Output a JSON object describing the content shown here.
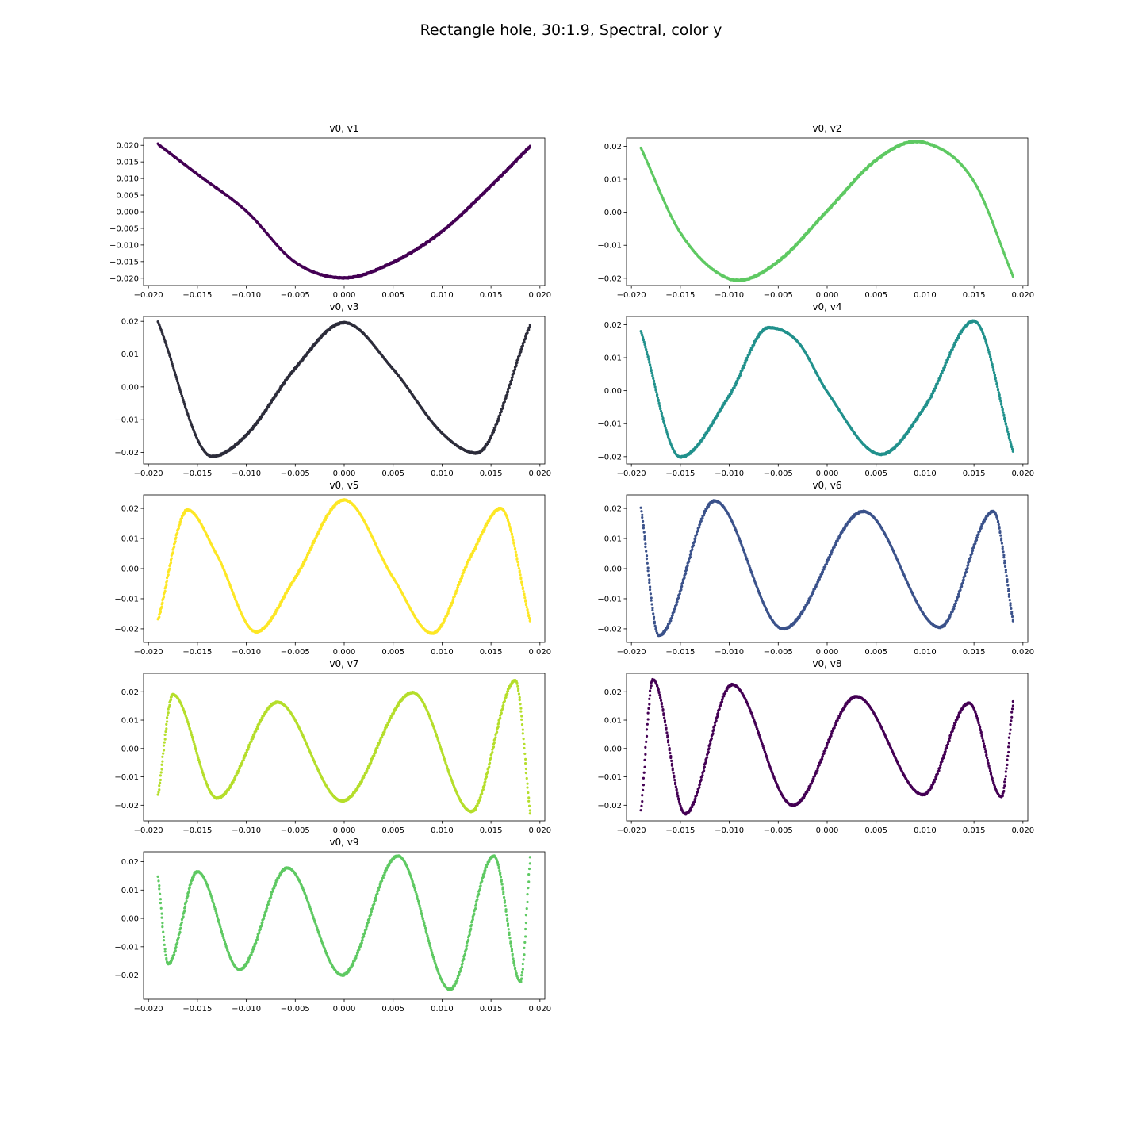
{
  "figure": {
    "title": "Rectangle hole, 30:1.9, Spectral, color y"
  },
  "colors": {
    "background": "#ffffff",
    "axis": "#000000",
    "points": [
      "#440154",
      "#3b528b",
      "#21918c",
      "#5ec962",
      "#b5de2b",
      "#fde725",
      "#2c2c3a"
    ]
  },
  "chart_data": [
    {
      "type": "scatter",
      "title": "v0, v1",
      "xlim": [
        -0.0205,
        0.0205
      ],
      "ylim": [
        -0.0222,
        0.0222
      ],
      "xticks": [
        -0.02,
        -0.015,
        -0.01,
        -0.005,
        0.0,
        0.005,
        0.01,
        0.015,
        0.02
      ],
      "xtick_labels": [
        "−0.020",
        "−0.015",
        "−0.010",
        "−0.005",
        "0.000",
        "0.005",
        "0.010",
        "0.015",
        "0.020"
      ],
      "yticks": [
        -0.02,
        -0.015,
        -0.01,
        -0.005,
        0.0,
        0.005,
        0.01,
        0.015,
        0.02
      ],
      "ytick_labels": [
        "−0.020",
        "−0.015",
        "−0.010",
        "−0.005",
        "0.000",
        "0.005",
        "0.010",
        "0.015",
        "0.020"
      ],
      "x": [
        -0.019,
        -0.015,
        -0.01,
        -0.005,
        0.0,
        0.005,
        0.01,
        0.015,
        0.019
      ],
      "y": [
        0.0203,
        0.0113,
        0.0002,
        -0.0152,
        -0.0199,
        -0.0152,
        -0.0059,
        0.0078,
        0.0197
      ]
    },
    {
      "type": "scatter",
      "title": "v0, v2",
      "xlim": [
        -0.0205,
        0.0205
      ],
      "ylim": [
        -0.0222,
        0.0225
      ],
      "xticks": [
        -0.02,
        -0.015,
        -0.01,
        -0.005,
        0.0,
        0.005,
        0.01,
        0.015,
        0.02
      ],
      "xtick_labels": [
        "−0.020",
        "−0.015",
        "−0.010",
        "−0.005",
        "0.000",
        "0.005",
        "0.010",
        "0.015",
        "0.020"
      ],
      "yticks": [
        -0.02,
        -0.01,
        0.0,
        0.01,
        0.02
      ],
      "ytick_labels": [
        "−0.02",
        "−0.01",
        "0.00",
        "0.01",
        "0.02"
      ],
      "x": [
        -0.019,
        -0.015,
        -0.01,
        -0.009,
        -0.005,
        0.0,
        0.005,
        0.009,
        0.01,
        0.015,
        0.019
      ],
      "y": [
        0.0193,
        -0.0062,
        -0.0202,
        -0.0206,
        -0.0149,
        0.0004,
        0.0158,
        0.0214,
        0.0211,
        0.0093,
        -0.0195
      ]
    },
    {
      "type": "scatter",
      "title": "v0, v3",
      "xlim": [
        -0.0205,
        0.0205
      ],
      "ylim": [
        -0.0235,
        0.0215
      ],
      "xticks": [
        -0.02,
        -0.015,
        -0.01,
        -0.005,
        0.0,
        0.005,
        0.01,
        0.015,
        0.02
      ],
      "xtick_labels": [
        "−0.020",
        "−0.015",
        "−0.010",
        "−0.005",
        "0.000",
        "0.005",
        "0.010",
        "0.015",
        "0.020"
      ],
      "yticks": [
        -0.02,
        -0.01,
        0.0,
        0.01,
        0.02
      ],
      "ytick_labels": [
        "−0.02",
        "−0.01",
        "0.00",
        "0.01",
        "0.02"
      ],
      "x": [
        -0.019,
        -0.0135,
        -0.01,
        -0.005,
        0.0,
        0.005,
        0.01,
        0.0135,
        0.019
      ],
      "y": [
        0.0197,
        -0.0212,
        -0.0147,
        0.0057,
        0.0196,
        0.0054,
        -0.0141,
        -0.0202,
        0.0188
      ]
    },
    {
      "type": "scatter",
      "title": "v0, v4",
      "xlim": [
        -0.0205,
        0.0205
      ],
      "ylim": [
        -0.0222,
        0.0225
      ],
      "xticks": [
        -0.02,
        -0.015,
        -0.01,
        -0.005,
        0.0,
        0.005,
        0.01,
        0.015,
        0.02
      ],
      "xtick_labels": [
        "−0.020",
        "−0.015",
        "−0.010",
        "−0.005",
        "0.000",
        "0.005",
        "0.010",
        "0.015",
        "0.020"
      ],
      "yticks": [
        -0.02,
        -0.01,
        0.0,
        0.01,
        0.02
      ],
      "ytick_labels": [
        "−0.02",
        "−0.01",
        "0.00",
        "0.01",
        "0.02"
      ],
      "x": [
        -0.019,
        -0.015,
        -0.01,
        -0.006,
        -0.003,
        0.0,
        0.0055,
        0.01,
        0.015,
        0.019
      ],
      "y": [
        0.0178,
        -0.0201,
        -0.0015,
        0.0191,
        0.0148,
        -0.0003,
        -0.0193,
        -0.0048,
        0.0211,
        -0.0185
      ]
    },
    {
      "type": "scatter",
      "title": "v0, v5",
      "xlim": [
        -0.0205,
        0.0205
      ],
      "ylim": [
        -0.0245,
        0.0245
      ],
      "xticks": [
        -0.02,
        -0.015,
        -0.01,
        -0.005,
        0.0,
        0.005,
        0.01,
        0.015,
        0.02
      ],
      "xtick_labels": [
        "−0.020",
        "−0.015",
        "−0.010",
        "−0.005",
        "0.000",
        "0.005",
        "0.010",
        "0.015",
        "0.020"
      ],
      "yticks": [
        -0.02,
        -0.01,
        0.0,
        0.01,
        0.02
      ],
      "ytick_labels": [
        "−0.02",
        "−0.01",
        "0.00",
        "0.01",
        "0.02"
      ],
      "x": [
        -0.019,
        -0.016,
        -0.013,
        -0.009,
        -0.005,
        0.0,
        0.005,
        0.009,
        0.013,
        0.016,
        0.019
      ],
      "y": [
        -0.017,
        0.0195,
        0.0045,
        -0.021,
        -0.003,
        0.0228,
        -0.003,
        -0.0215,
        0.0045,
        0.02,
        -0.0175
      ]
    },
    {
      "type": "scatter",
      "title": "v0, v6",
      "xlim": [
        -0.0205,
        0.0205
      ],
      "ylim": [
        -0.0245,
        0.0245
      ],
      "xticks": [
        -0.02,
        -0.015,
        -0.01,
        -0.005,
        0.0,
        0.005,
        0.01,
        0.015,
        0.02
      ],
      "xtick_labels": [
        "−0.020",
        "−0.015",
        "−0.010",
        "−0.005",
        "0.000",
        "0.005",
        "0.010",
        "0.015",
        "0.020"
      ],
      "yticks": [
        -0.02,
        -0.01,
        0.0,
        0.01,
        0.02
      ],
      "ytick_labels": [
        "−0.02",
        "−0.01",
        "0.00",
        "0.01",
        "0.02"
      ],
      "x": [
        -0.019,
        -0.0172,
        -0.0115,
        -0.0045,
        0.0037,
        0.0115,
        0.017,
        0.019
      ],
      "y": [
        0.02,
        -0.0222,
        0.0225,
        -0.02,
        0.019,
        -0.0195,
        0.019,
        -0.0175
      ]
    },
    {
      "type": "scatter",
      "title": "v0, v7",
      "xlim": [
        -0.0205,
        0.0205
      ],
      "ylim": [
        -0.0255,
        0.0265
      ],
      "xticks": [
        -0.02,
        -0.015,
        -0.01,
        -0.005,
        0.0,
        0.005,
        0.01,
        0.015,
        0.02
      ],
      "xtick_labels": [
        "−0.020",
        "−0.015",
        "−0.010",
        "−0.005",
        "0.000",
        "0.005",
        "0.010",
        "0.015",
        "0.020"
      ],
      "yticks": [
        -0.02,
        -0.01,
        0.0,
        0.01,
        0.02
      ],
      "ytick_labels": [
        "−0.02",
        "−0.01",
        "0.00",
        "0.01",
        "0.02"
      ],
      "x": [
        -0.019,
        -0.0175,
        -0.013,
        -0.0068,
        -0.0002,
        0.007,
        0.013,
        0.0175,
        0.019
      ],
      "y": [
        -0.0165,
        0.019,
        -0.0175,
        0.0163,
        -0.0185,
        0.0197,
        -0.0222,
        0.024,
        -0.023
      ]
    },
    {
      "type": "scatter",
      "title": "v0, v8",
      "xlim": [
        -0.0205,
        0.0205
      ],
      "ylim": [
        -0.0255,
        0.0265
      ],
      "xticks": [
        -0.02,
        -0.015,
        -0.01,
        -0.005,
        0.0,
        0.005,
        0.01,
        0.015,
        0.02
      ],
      "xtick_labels": [
        "−0.020",
        "−0.015",
        "−0.010",
        "−0.005",
        "0.000",
        "0.005",
        "0.010",
        "0.015",
        "0.020"
      ],
      "yticks": [
        -0.02,
        -0.01,
        0.0,
        0.01,
        0.02
      ],
      "ytick_labels": [
        "−0.02",
        "−0.01",
        "0.00",
        "0.01",
        "0.02"
      ],
      "x": [
        -0.019,
        -0.0178,
        -0.0145,
        -0.0097,
        -0.0035,
        0.003,
        0.0098,
        0.0145,
        0.0178,
        0.019
      ],
      "y": [
        -0.022,
        0.0243,
        -0.023,
        0.0225,
        -0.02,
        0.0183,
        -0.0163,
        0.016,
        -0.017,
        0.0165
      ]
    },
    {
      "type": "scatter",
      "title": "v0, v9",
      "xlim": [
        -0.0205,
        0.0205
      ],
      "ylim": [
        -0.0285,
        0.0235
      ],
      "xticks": [
        -0.02,
        -0.015,
        -0.01,
        -0.005,
        0.0,
        0.005,
        0.01,
        0.015,
        0.02
      ],
      "xtick_labels": [
        "−0.020",
        "−0.015",
        "−0.010",
        "−0.005",
        "0.000",
        "0.005",
        "0.010",
        "0.015",
        "0.020"
      ],
      "yticks": [
        -0.02,
        -0.01,
        0.0,
        0.01,
        0.02
      ],
      "ytick_labels": [
        "−0.02",
        "−0.01",
        "0.00",
        "0.01",
        "0.02"
      ],
      "x": [
        -0.019,
        -0.018,
        -0.015,
        -0.0107,
        -0.0058,
        -0.0002,
        0.0055,
        0.0108,
        0.0153,
        0.018,
        0.019
      ],
      "y": [
        0.0145,
        -0.016,
        0.0165,
        -0.018,
        0.0178,
        -0.02,
        0.022,
        -0.025,
        0.022,
        -0.0222,
        0.0215
      ]
    }
  ]
}
